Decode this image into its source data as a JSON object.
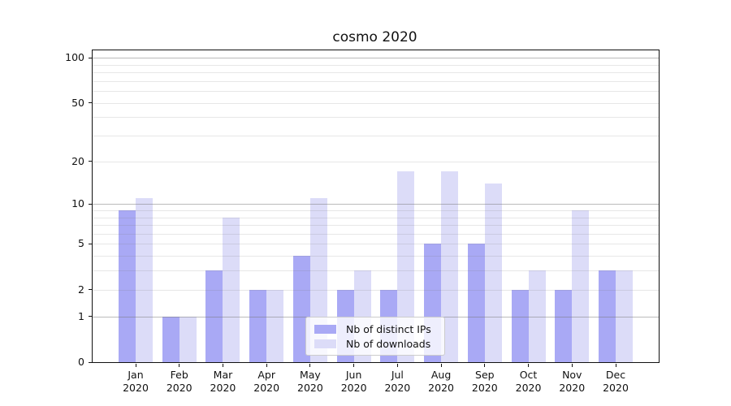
{
  "chart_data": {
    "type": "bar",
    "title": "cosmo 2020",
    "categories": [
      "Jan",
      "Feb",
      "Mar",
      "Apr",
      "May",
      "Jun",
      "Jul",
      "Aug",
      "Sep",
      "Oct",
      "Nov",
      "Dec"
    ],
    "year": "2020",
    "series": [
      {
        "name": "Nb of distinct IPs",
        "color": "#a9a9f5",
        "values": [
          9,
          1,
          3,
          2,
          4,
          2,
          2,
          5,
          5,
          2,
          2,
          3
        ]
      },
      {
        "name": "Nb of downloads",
        "color": "#dcdcf8",
        "values": [
          11,
          1,
          8,
          2,
          11,
          3,
          17,
          17,
          14,
          3,
          9,
          3
        ]
      }
    ],
    "yscale": "log1p",
    "ylim": [
      0,
      112
    ],
    "y_tick_values": [
      0,
      1,
      2,
      5,
      10,
      20,
      50,
      100
    ],
    "major_gridlines": [
      1,
      10,
      100
    ],
    "minor_gridlines": [
      2,
      3,
      4,
      5,
      6,
      7,
      8,
      9,
      20,
      30,
      40,
      50,
      60,
      70,
      80,
      90
    ],
    "grid": true,
    "legend_position": "lower center",
    "xlabel": "",
    "ylabel": ""
  },
  "colors": {
    "bar_ips": "#a9a9f5",
    "bar_downloads": "#dcdcf8",
    "major_grid": "#c0c0c0",
    "minor_grid": "#e8e8e8",
    "axis_frame": "#111111",
    "background": "#ffffff"
  }
}
